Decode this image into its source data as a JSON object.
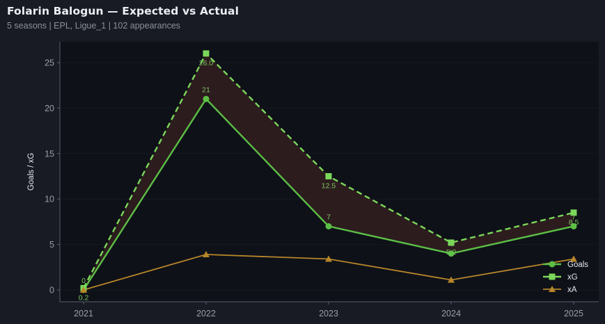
{
  "header": {
    "title": "Folarin Balogun — Expected vs Actual",
    "subtitle": "5 seasons | EPL, Ligue_1 | 102 appearances"
  },
  "colors": {
    "background": "#181b23",
    "plot_background": "#0e1118",
    "goals": "#5cbf45",
    "xg": "#7bd85a",
    "xa": "#b8862a",
    "gap_fill": "#2e1d1f",
    "data_label": "#7ec860"
  },
  "chart_data": {
    "type": "line",
    "title": "Folarin Balogun — Expected vs Actual",
    "subtitle": "5 seasons | EPL, Ligue_1 | 102 appearances",
    "xlabel": "",
    "ylabel": "Goals / xG",
    "x": [
      "2021",
      "2022",
      "2023",
      "2024",
      "2025"
    ],
    "ylim": [
      -1.3,
      27.3
    ],
    "yticks": [
      0,
      5,
      10,
      15,
      20,
      25
    ],
    "grid": true,
    "legend_position": "lower right",
    "series": [
      {
        "name": "Goals",
        "values": [
          0,
          21,
          7,
          4,
          7
        ],
        "style": "solid",
        "marker": "circle",
        "labels": [
          "0",
          "21",
          "7",
          "4",
          "7"
        ]
      },
      {
        "name": "xG",
        "values": [
          0.2,
          26.0,
          12.5,
          5.2,
          8.5
        ],
        "style": "dashed",
        "marker": "square",
        "labels": [
          "0.2",
          "26.0",
          "12.5",
          "5.2",
          "8.5"
        ]
      },
      {
        "name": "xA",
        "values": [
          0.0,
          3.9,
          3.4,
          1.1,
          3.4
        ],
        "style": "solid",
        "marker": "triangle"
      }
    ],
    "annotations": [
      "shaded region between Goals and xG"
    ]
  },
  "axis": {
    "ylabel": "Goals / xG",
    "yticks": [
      "0",
      "5",
      "10",
      "15",
      "20",
      "25"
    ],
    "xticks": [
      "2021",
      "2022",
      "2023",
      "2024",
      "2025"
    ]
  },
  "legend": {
    "items": [
      {
        "label": "Goals"
      },
      {
        "label": "xG"
      },
      {
        "label": "xA"
      }
    ]
  }
}
